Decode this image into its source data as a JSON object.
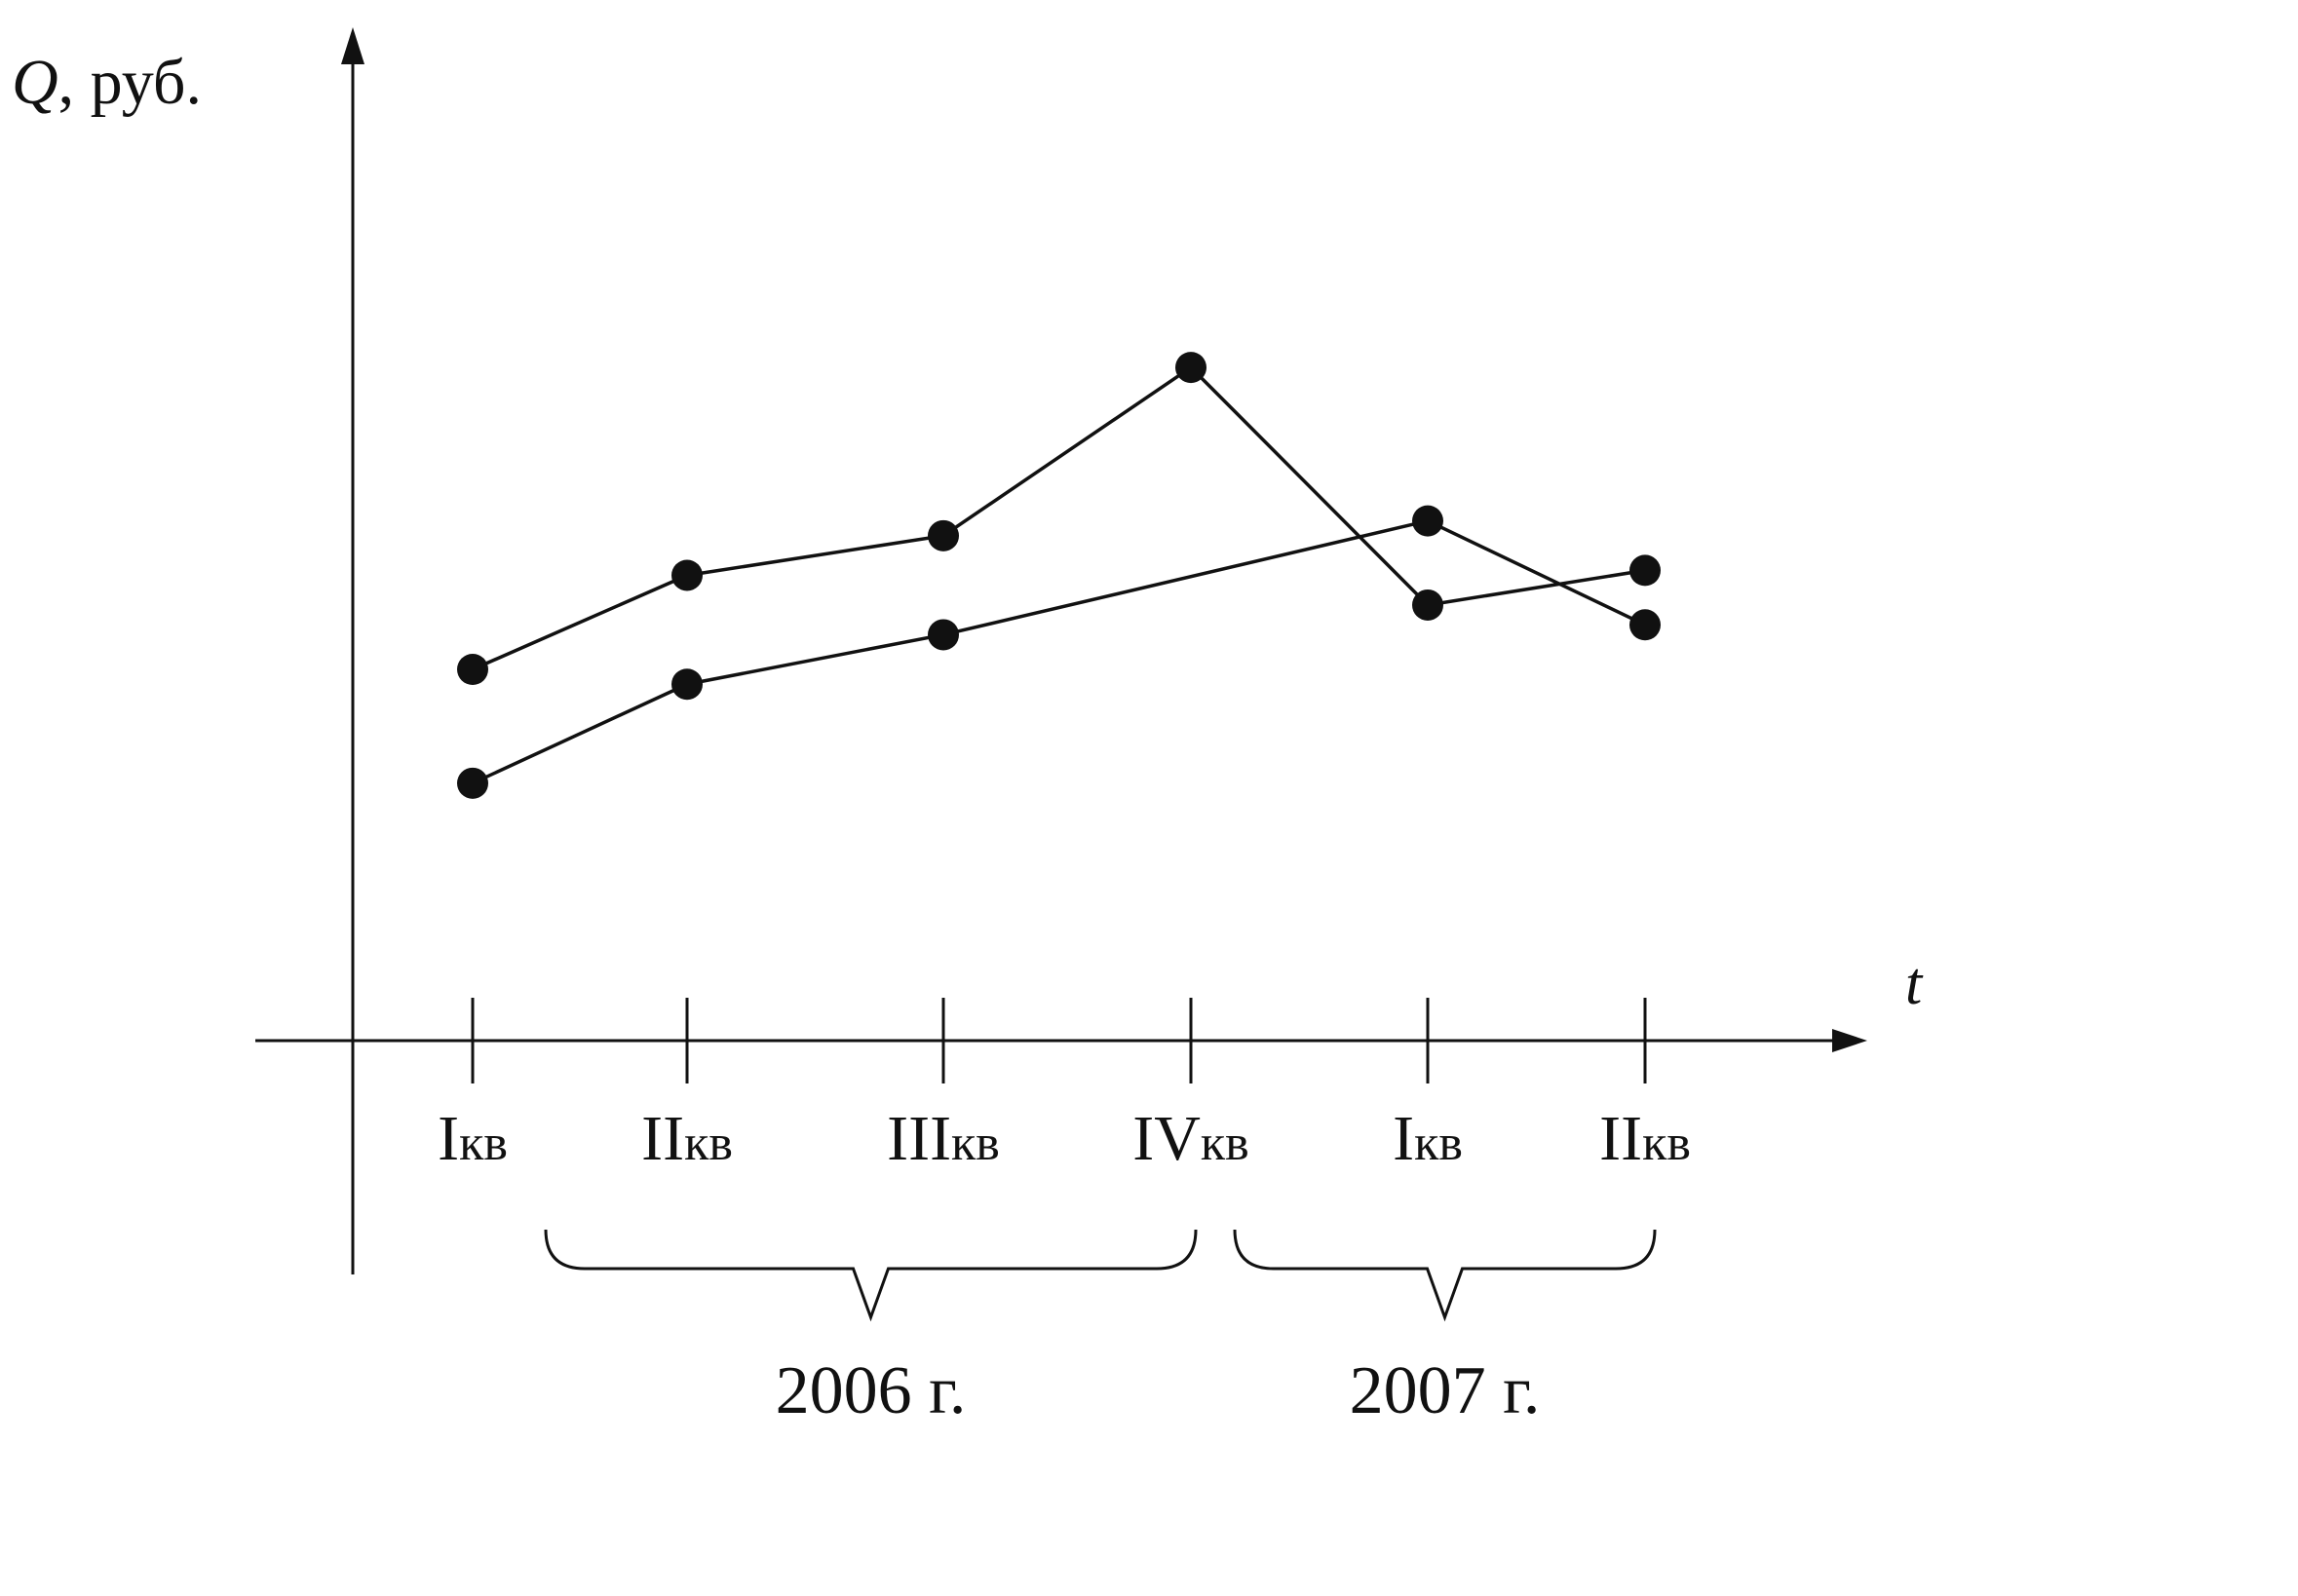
{
  "chart_data": {
    "type": "line",
    "ylabel_italic": "Q",
    "ylabel_rest": ", руб.",
    "xlabel": "t",
    "categories": [
      "Iкв",
      "IIкв",
      "IIIкв",
      "IVкв",
      "Iкв",
      "IIкв"
    ],
    "category_parts": [
      {
        "roman": "I",
        "suffix": "кв"
      },
      {
        "roman": "II",
        "suffix": "кв"
      },
      {
        "roman": "III",
        "suffix": "кв"
      },
      {
        "roman": "IV",
        "suffix": "кв"
      },
      {
        "roman": "I",
        "suffix": "кв"
      },
      {
        "roman": "II",
        "suffix": "кв"
      }
    ],
    "groups": [
      {
        "label": "2006 г.",
        "from": 0,
        "to": 3
      },
      {
        "label": "2007 г.",
        "from": 4,
        "to": 5
      }
    ],
    "ylim": [
      0,
      10
    ],
    "series": [
      {
        "x": [
          0,
          1,
          2,
          3,
          4,
          5
        ],
        "values": [
          3.75,
          4.7,
          5.1,
          6.8,
          4.4,
          4.75
        ]
      },
      {
        "x": [
          0,
          1,
          2,
          4,
          5
        ],
        "values": [
          2.6,
          3.6,
          4.1,
          5.25,
          4.2
        ]
      }
    ],
    "grid": false,
    "legend": "none"
  }
}
